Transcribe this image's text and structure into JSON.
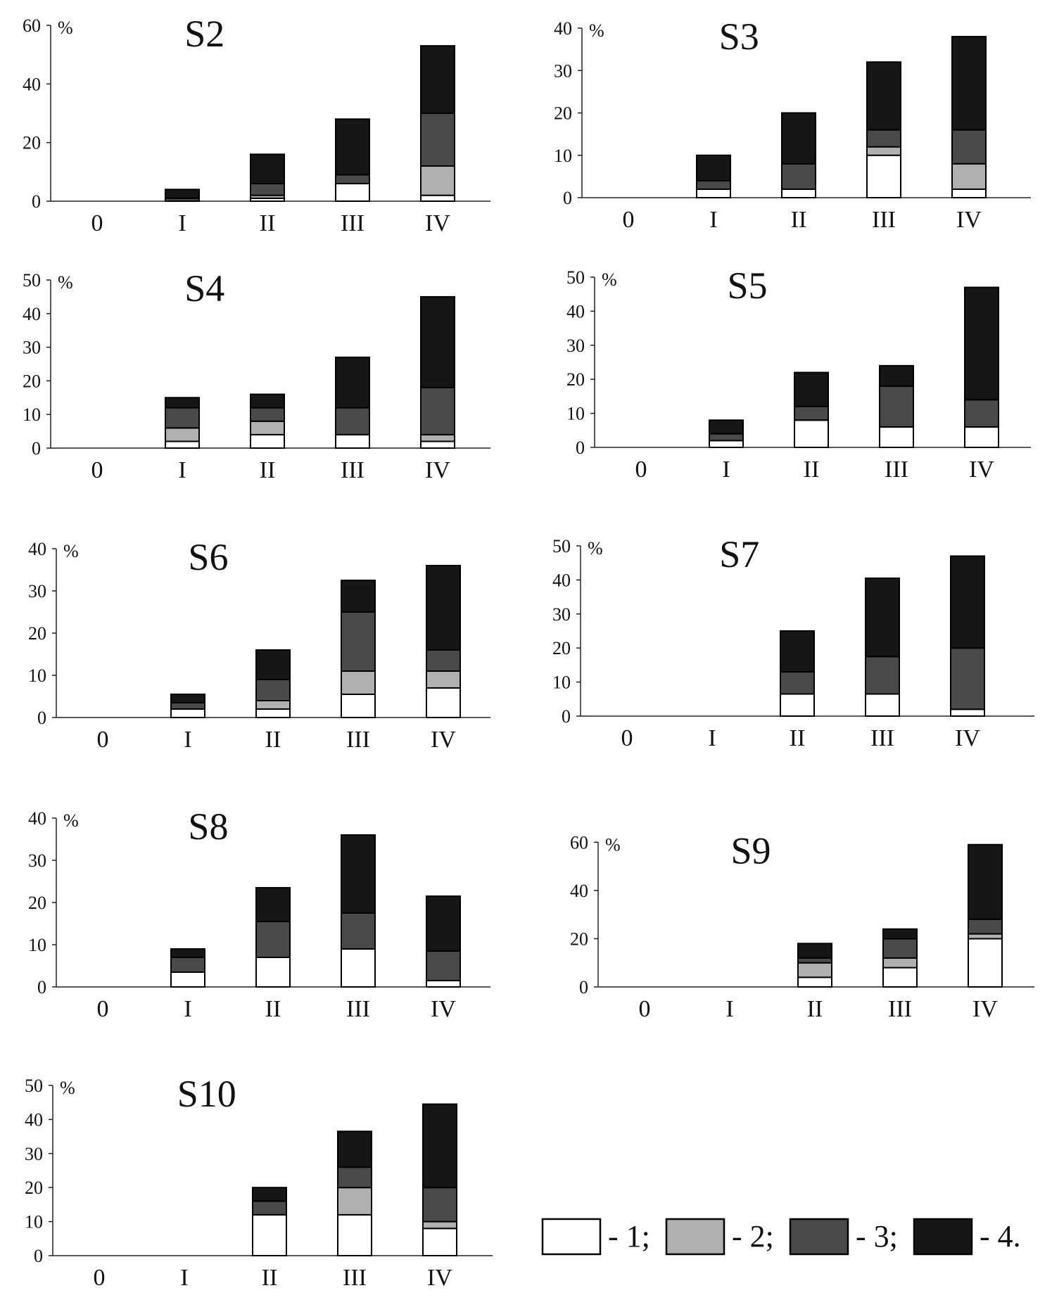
{
  "colors": {
    "class_1": "#ffffff",
    "class_2": "#b0b0b0",
    "class_3": "#4a4a4a",
    "class_4": "#161616",
    "outline": "#000000",
    "axis": "#222222"
  },
  "legend": {
    "items": [
      {
        "label": "- 1;",
        "color_key": "class_1"
      },
      {
        "label": "- 2;",
        "color_key": "class_2"
      },
      {
        "label": "- 3;",
        "color_key": "class_3"
      },
      {
        "label": "- 4.",
        "color_key": "class_4"
      }
    ]
  },
  "chart_data": [
    {
      "type": "bar",
      "stacked": true,
      "title": "S2",
      "ylabel": "%",
      "categories": [
        "0",
        "I",
        "II",
        "III",
        "IV"
      ],
      "ylim": [
        0,
        60
      ],
      "yticks": [
        0,
        20,
        40,
        60
      ],
      "series": [
        {
          "name": "1",
          "values": [
            0,
            0,
            1,
            6,
            2
          ]
        },
        {
          "name": "2",
          "values": [
            0,
            0,
            1,
            0,
            10
          ]
        },
        {
          "name": "3",
          "values": [
            0,
            1,
            4,
            3,
            18
          ]
        },
        {
          "name": "4",
          "values": [
            0,
            3,
            10,
            19,
            23
          ]
        }
      ]
    },
    {
      "type": "bar",
      "stacked": true,
      "title": "S3",
      "ylabel": "%",
      "categories": [
        "0",
        "I",
        "II",
        "III",
        "IV"
      ],
      "ylim": [
        0,
        40
      ],
      "yticks": [
        0,
        10,
        20,
        30,
        40
      ],
      "series": [
        {
          "name": "1",
          "values": [
            0,
            2,
            2,
            10,
            2
          ]
        },
        {
          "name": "2",
          "values": [
            0,
            0,
            0,
            2,
            6
          ]
        },
        {
          "name": "3",
          "values": [
            0,
            2,
            6,
            4,
            8
          ]
        },
        {
          "name": "4",
          "values": [
            0,
            6,
            12,
            16,
            22
          ]
        }
      ]
    },
    {
      "type": "bar",
      "stacked": true,
      "title": "S4",
      "ylabel": "%",
      "categories": [
        "0",
        "I",
        "II",
        "III",
        "IV"
      ],
      "ylim": [
        0,
        50
      ],
      "yticks": [
        0,
        10,
        20,
        30,
        40,
        50
      ],
      "series": [
        {
          "name": "1",
          "values": [
            0,
            2,
            4,
            4,
            2
          ]
        },
        {
          "name": "2",
          "values": [
            0,
            4,
            4,
            0,
            2
          ]
        },
        {
          "name": "3",
          "values": [
            0,
            6,
            4,
            8,
            14
          ]
        },
        {
          "name": "4",
          "values": [
            0,
            3,
            4,
            15,
            27
          ]
        }
      ]
    },
    {
      "type": "bar",
      "stacked": true,
      "title": "S5",
      "ylabel": "%",
      "categories": [
        "0",
        "I",
        "II",
        "III",
        "IV"
      ],
      "ylim": [
        0,
        50
      ],
      "yticks": [
        0,
        10,
        20,
        30,
        40,
        50
      ],
      "series": [
        {
          "name": "1",
          "values": [
            0,
            2,
            8,
            6,
            6
          ]
        },
        {
          "name": "2",
          "values": [
            0,
            0,
            0,
            0,
            0
          ]
        },
        {
          "name": "3",
          "values": [
            0,
            2,
            4,
            12,
            8
          ]
        },
        {
          "name": "4",
          "values": [
            0,
            4,
            10,
            6,
            33
          ]
        }
      ]
    },
    {
      "type": "bar",
      "stacked": true,
      "title": "S6",
      "ylabel": "%",
      "categories": [
        "0",
        "I",
        "II",
        "III",
        "IV"
      ],
      "ylim": [
        0,
        40
      ],
      "yticks": [
        0,
        10,
        20,
        30,
        40
      ],
      "series": [
        {
          "name": "1",
          "values": [
            0,
            2,
            2,
            5.5,
            7
          ]
        },
        {
          "name": "2",
          "values": [
            0,
            0,
            2,
            5.5,
            4
          ]
        },
        {
          "name": "3",
          "values": [
            0,
            1.5,
            5,
            14,
            5
          ]
        },
        {
          "name": "4",
          "values": [
            0,
            2,
            7,
            7.5,
            20
          ]
        }
      ]
    },
    {
      "type": "bar",
      "stacked": true,
      "title": "S7",
      "ylabel": "%",
      "categories": [
        "0",
        "I",
        "II",
        "III",
        "IV"
      ],
      "ylim": [
        0,
        50
      ],
      "yticks": [
        0,
        10,
        20,
        30,
        40,
        50
      ],
      "series": [
        {
          "name": "1",
          "values": [
            0,
            0,
            6.5,
            6.5,
            2
          ]
        },
        {
          "name": "2",
          "values": [
            0,
            0,
            0,
            0,
            0
          ]
        },
        {
          "name": "3",
          "values": [
            0,
            0,
            6.5,
            11,
            18
          ]
        },
        {
          "name": "4",
          "values": [
            0,
            0,
            12,
            23,
            27
          ]
        }
      ]
    },
    {
      "type": "bar",
      "stacked": true,
      "title": "S8",
      "ylabel": "%",
      "categories": [
        "0",
        "I",
        "II",
        "III",
        "IV"
      ],
      "ylim": [
        0,
        40
      ],
      "yticks": [
        0,
        10,
        20,
        30,
        40
      ],
      "series": [
        {
          "name": "1",
          "values": [
            0,
            3.5,
            7,
            9,
            1.5
          ]
        },
        {
          "name": "2",
          "values": [
            0,
            0,
            0,
            0,
            0
          ]
        },
        {
          "name": "3",
          "values": [
            0,
            3.5,
            8.5,
            8.5,
            7
          ]
        },
        {
          "name": "4",
          "values": [
            0,
            2,
            8,
            18.5,
            13
          ]
        }
      ]
    },
    {
      "type": "bar",
      "stacked": true,
      "title": "S9",
      "ylabel": "%",
      "categories": [
        "0",
        "I",
        "II",
        "III",
        "IV"
      ],
      "ylim": [
        0,
        70
      ],
      "yticks": [
        0,
        20,
        40,
        60
      ],
      "series": [
        {
          "name": "1",
          "values": [
            0,
            0,
            4,
            8,
            20
          ]
        },
        {
          "name": "2",
          "values": [
            0,
            0,
            6,
            4,
            2
          ]
        },
        {
          "name": "3",
          "values": [
            0,
            0,
            2,
            8,
            6
          ]
        },
        {
          "name": "4",
          "values": [
            0,
            0,
            6,
            4,
            31
          ]
        }
      ]
    },
    {
      "type": "bar",
      "stacked": true,
      "title": "S10",
      "ylabel": "%",
      "categories": [
        "0",
        "I",
        "II",
        "III",
        "IV"
      ],
      "ylim": [
        0,
        50
      ],
      "yticks": [
        0,
        10,
        20,
        30,
        40,
        50
      ],
      "series": [
        {
          "name": "1",
          "values": [
            0,
            0,
            12,
            12,
            8
          ]
        },
        {
          "name": "2",
          "values": [
            0,
            0,
            0,
            8,
            2
          ]
        },
        {
          "name": "3",
          "values": [
            0,
            0,
            4,
            6,
            10
          ]
        },
        {
          "name": "4",
          "values": [
            0,
            0,
            4,
            10.5,
            24.5
          ]
        }
      ]
    }
  ]
}
